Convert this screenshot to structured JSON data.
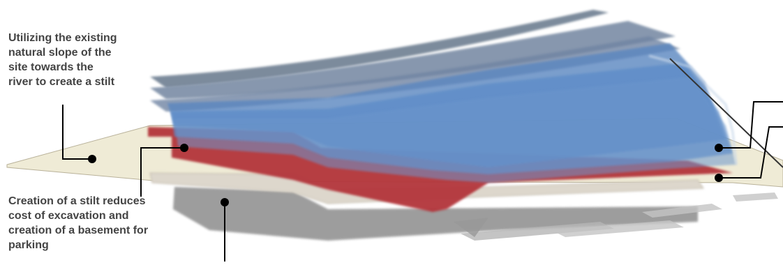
{
  "annotations": {
    "stilt_slope": "Utilizing the existing\nnatural slope of the\nsite towards the\nriver to create a stilt",
    "stilt_reduces_cost": "Creation of a stilt reduces\ncost of excavation and\ncreation of a basement for\nparking"
  },
  "colors": {
    "site_ground": "#efebd6",
    "stilt_slab": "#ddd7cc",
    "basement_shadow": "#8c8c8c",
    "red_slab": "#b3363a",
    "blue_floor": "#5a86c0",
    "grey_floor": "#6e7f92",
    "leader_line": "#000000"
  }
}
